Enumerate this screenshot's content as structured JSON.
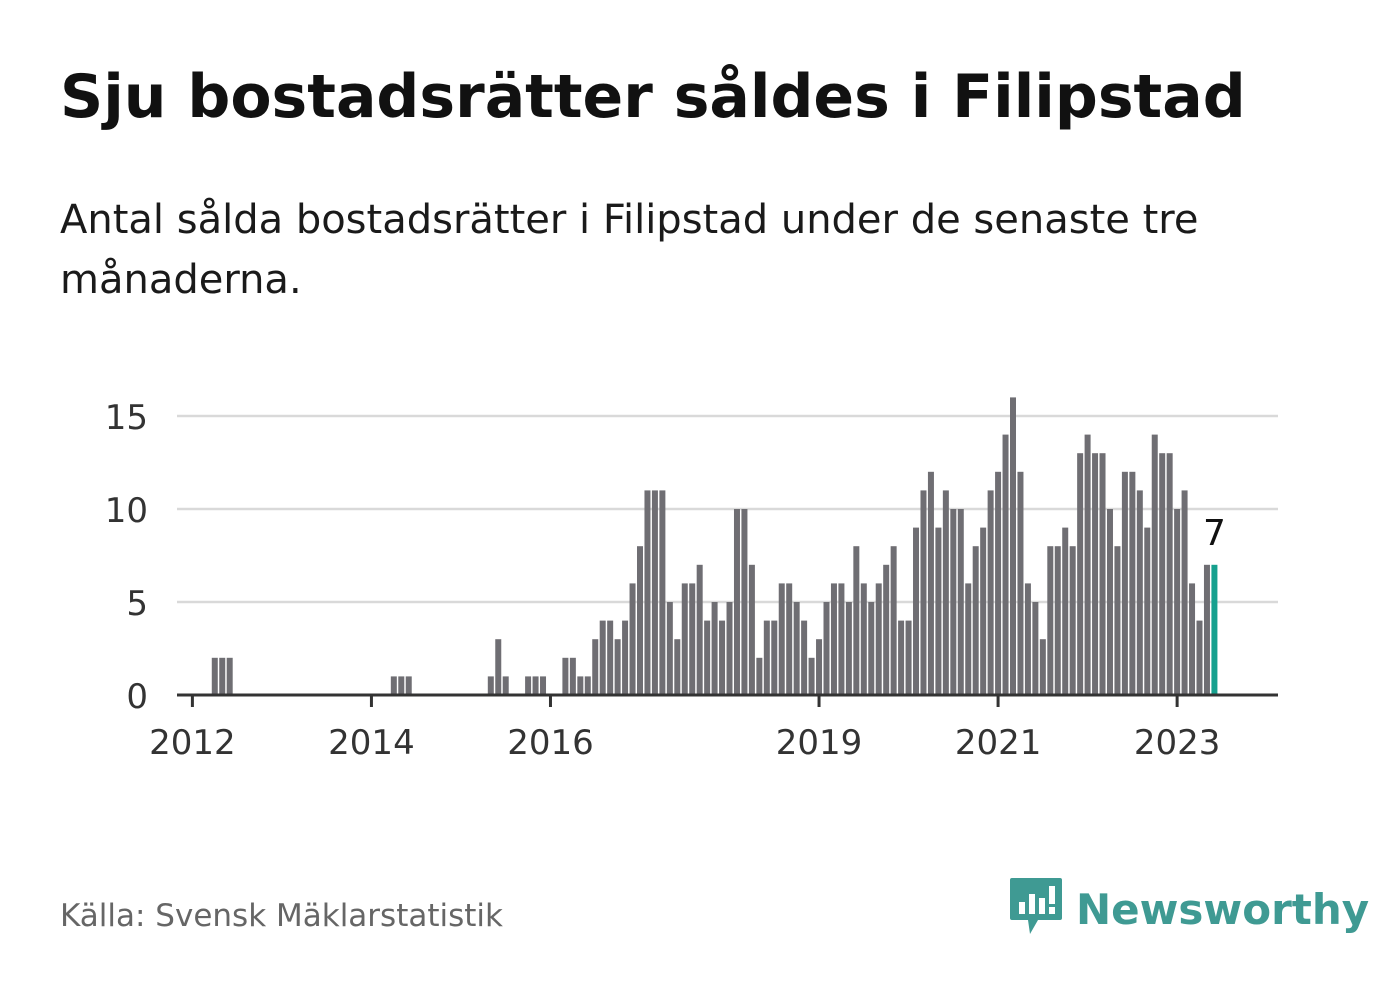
{
  "header": {
    "title": "Sju bostadsrätter såldes i Filipstad",
    "subtitle": "Antal sålda bostadsrätter i Filipstad under de senaste tre månaderna."
  },
  "footer": {
    "source": "Källa: Svensk Mäklarstatistik",
    "brand": "Newsworthy",
    "brand_icon": "newsworthy-logo-icon"
  },
  "colors": {
    "bar": "#6f6e73",
    "highlight": "#16a08e",
    "grid": "#d9d9d9",
    "axis": "#333333",
    "brand": "#3f9a93"
  },
  "chart_data": {
    "type": "bar",
    "x_start": "2012-01",
    "ylim": [
      0,
      15
    ],
    "yticks": [
      0,
      5,
      10,
      15
    ],
    "xticks": [
      "2012",
      "2014",
      "2016",
      "2019",
      "2021",
      "2023"
    ],
    "highlight_label": "7",
    "values": [
      0,
      0,
      0,
      2,
      2,
      2,
      0,
      0,
      0,
      0,
      0,
      0,
      0,
      0,
      0,
      0,
      0,
      0,
      0,
      0,
      0,
      0,
      0,
      0,
      0,
      0,
      0,
      1,
      1,
      1,
      0,
      0,
      0,
      0,
      0,
      0,
      0,
      0,
      0,
      0,
      1,
      3,
      1,
      0,
      0,
      1,
      1,
      1,
      0,
      0,
      2,
      2,
      1,
      1,
      3,
      4,
      4,
      3,
      4,
      6,
      8,
      11,
      11,
      11,
      5,
      3,
      6,
      6,
      7,
      4,
      5,
      4,
      5,
      10,
      10,
      7,
      2,
      4,
      4,
      6,
      6,
      5,
      4,
      2,
      3,
      5,
      6,
      6,
      5,
      8,
      6,
      5,
      6,
      7,
      8,
      4,
      4,
      9,
      11,
      12,
      9,
      11,
      10,
      10,
      6,
      8,
      9,
      11,
      12,
      14,
      16,
      12,
      6,
      5,
      3,
      8,
      8,
      9,
      8,
      13,
      14,
      13,
      13,
      10,
      8,
      12,
      12,
      11,
      9,
      14,
      13,
      13,
      10,
      11,
      6,
      4,
      7,
      7
    ]
  }
}
